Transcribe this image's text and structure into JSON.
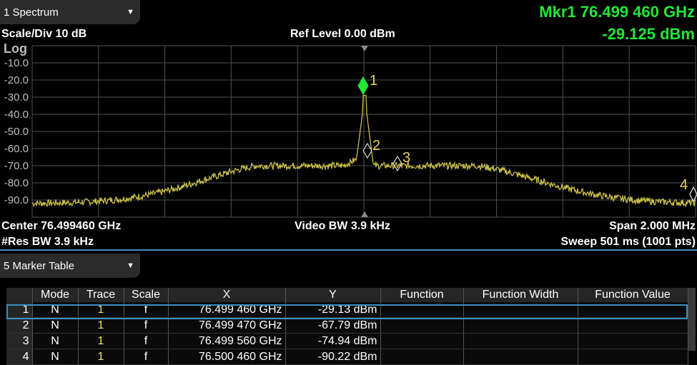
{
  "window": {
    "selector_label": "1 Spectrum",
    "selector_arrow": "▼"
  },
  "header": {
    "scale_div": "Scale/Div 10 dB",
    "ref_level": "Ref Level 0.00 dBm",
    "marker_freq": "Mkr1  76.499 460 GHz",
    "marker_amp": "-29.125 dBm",
    "scale_type": "Log"
  },
  "graticule": {
    "y_labels": [
      "-10.0",
      "-20.0",
      "-30.0",
      "-40.0",
      "-50.0",
      "-60.0",
      "-70.0",
      "-80.0",
      "-90.0"
    ]
  },
  "footer": {
    "center": "Center 76.499460 GHz",
    "video_bw": "Video BW 3.9 kHz",
    "span": "Span 2.000 MHz",
    "res_bw": "#Res BW 3.9 kHz",
    "sweep": "Sweep 501 ms (1001 pts)"
  },
  "markers": {
    "labels": [
      "1",
      "2",
      "3",
      "4"
    ]
  },
  "marker_table": {
    "selector_label": "5 Marker Table",
    "selector_arrow": "▼",
    "headers": [
      "",
      "Mode",
      "Trace",
      "Scale",
      "X",
      "Y",
      "Function",
      "Function Width",
      "Function Value"
    ],
    "rows": [
      {
        "num": "1",
        "mode": "N",
        "trace": "1",
        "scale": "f",
        "x": "76.499 460 GHz",
        "y": "-29.13 dBm",
        "fn": "",
        "fn_width": "",
        "fn_value": ""
      },
      {
        "num": "2",
        "mode": "N",
        "trace": "1",
        "scale": "f",
        "x": "76.499 470 GHz",
        "y": "-67.79 dBm",
        "fn": "",
        "fn_width": "",
        "fn_value": ""
      },
      {
        "num": "3",
        "mode": "N",
        "trace": "1",
        "scale": "f",
        "x": "76.499 560 GHz",
        "y": "-74.94 dBm",
        "fn": "",
        "fn_width": "",
        "fn_value": ""
      },
      {
        "num": "4",
        "mode": "N",
        "trace": "1",
        "scale": "f",
        "x": "76.500 460 GHz",
        "y": "-90.22 dBm",
        "fn": "",
        "fn_width": "",
        "fn_value": ""
      }
    ]
  },
  "colors": {
    "trace": "#c9be4a",
    "marker_active": "#22e63a",
    "marker_label": "#e8d25a",
    "accent": "#3a8fc4"
  }
}
